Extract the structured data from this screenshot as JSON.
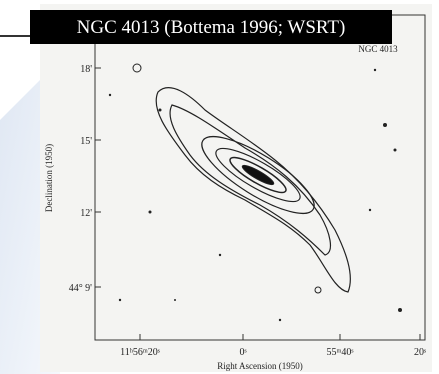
{
  "title": "NGC 4013 (Bottema 1996; WSRT)",
  "plot": {
    "label": "NGC 4013",
    "y_axis_title": "Declination (1950)",
    "x_axis_title": "Right Ascension (1950)",
    "y_tick_labels": [
      "18'",
      "15'",
      "12'",
      "44° 9'"
    ],
    "x_tick_labels": [
      "11ʰ56ᵐ20ˢ",
      "0ˢ",
      "55ᵐ40ˢ",
      "20ˢ"
    ]
  }
}
